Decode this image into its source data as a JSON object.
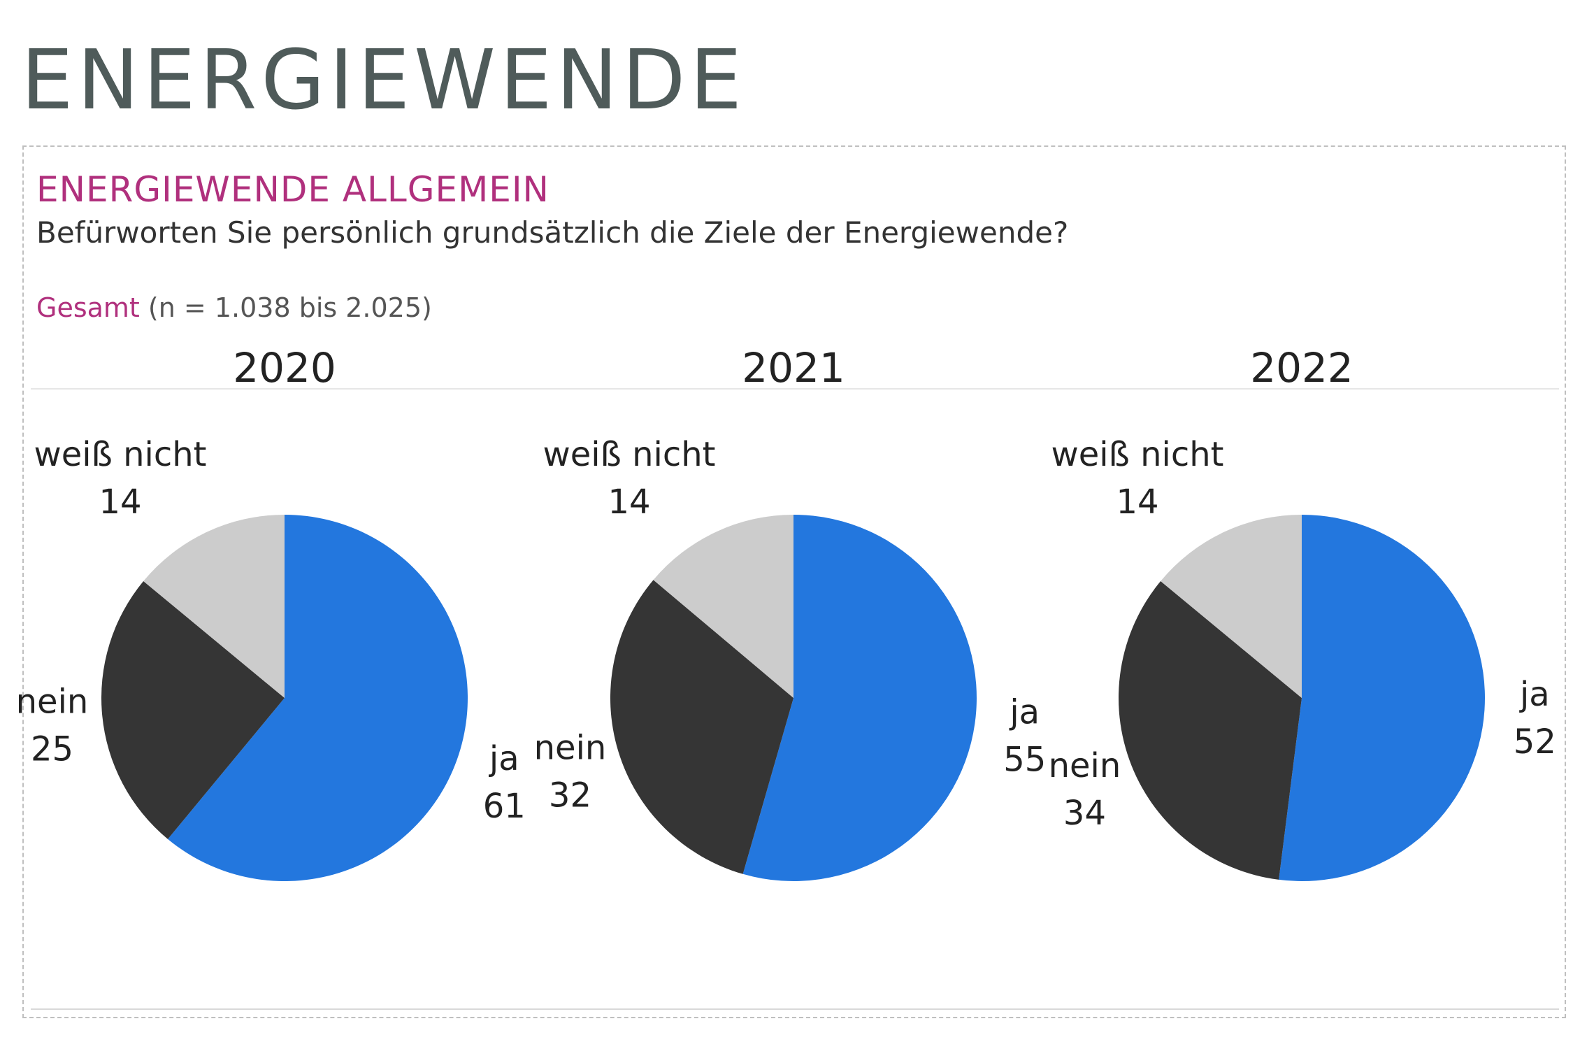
{
  "page": {
    "title": "ENERGIEWENDE"
  },
  "section": {
    "heading": "ENERGIEWENDE ALLGEMEIN",
    "question": "Befürworten Sie persönlich grundsätzlich die Ziele der Energiewende?",
    "sample_label": "Gesamt",
    "sample_size": "(n = 1.038 bis 2.025)"
  },
  "colors": {
    "ja": "#2377de",
    "nein": "#353535",
    "weiss_nicht": "#cccccc",
    "heading": "#b0307d",
    "title": "#4f5b5a"
  },
  "chart_data": {
    "type": "pie",
    "categories": [
      "ja",
      "nein",
      "weiß nicht"
    ],
    "series": [
      {
        "name": "2020",
        "values": [
          61,
          25,
          14
        ]
      },
      {
        "name": "2021",
        "values": [
          55,
          32,
          14
        ]
      },
      {
        "name": "2022",
        "values": [
          52,
          34,
          14
        ]
      }
    ],
    "title": "Befürworten Sie persönlich grundsätzlich die Ziele der Energiewende?",
    "unit": "%"
  }
}
